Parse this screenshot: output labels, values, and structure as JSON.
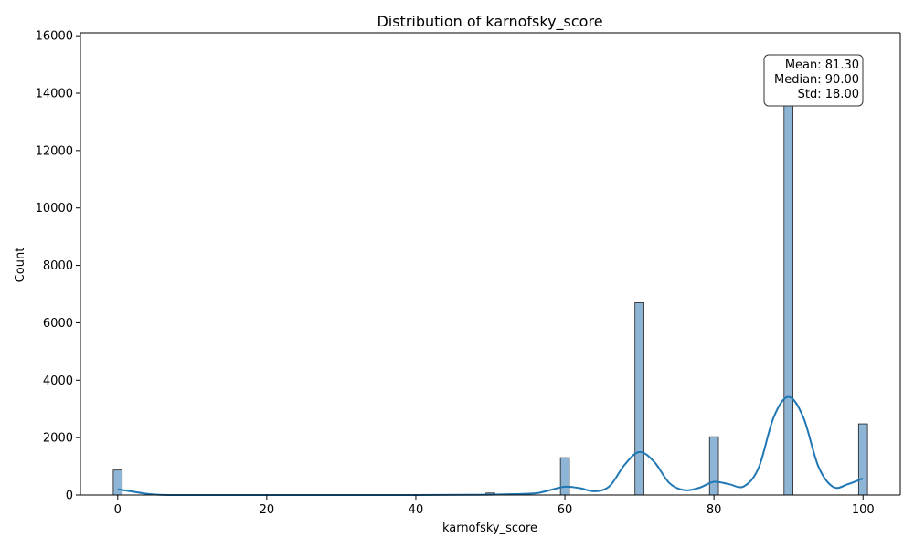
{
  "chart_data": {
    "type": "bar",
    "title": "Distribution of karnofsky_score",
    "xlabel": "karnofsky_score",
    "ylabel": "Count",
    "xlim": [
      -5,
      105
    ],
    "ylim": [
      0,
      16100
    ],
    "xticks": [
      0,
      20,
      40,
      60,
      80,
      100
    ],
    "yticks": [
      0,
      2000,
      4000,
      6000,
      8000,
      10000,
      12000,
      14000,
      16000
    ],
    "bin_width": 1.2,
    "bars": [
      {
        "x": 0,
        "value": 870
      },
      {
        "x": 50,
        "value": 70
      },
      {
        "x": 60,
        "value": 1300
      },
      {
        "x": 70,
        "value": 6700
      },
      {
        "x": 80,
        "value": 2030
      },
      {
        "x": 90,
        "value": 15200
      },
      {
        "x": 100,
        "value": 2480
      }
    ],
    "kde": {
      "x": [
        0,
        2,
        4,
        6,
        10,
        20,
        30,
        40,
        48,
        52,
        56,
        58,
        60,
        62,
        64,
        66,
        68,
        70,
        72,
        74,
        76,
        78,
        80,
        82,
        84,
        86,
        88,
        90,
        92,
        94,
        96,
        98,
        100
      ],
      "y": [
        200,
        120,
        40,
        5,
        0,
        0,
        0,
        0,
        8,
        25,
        60,
        170,
        290,
        240,
        130,
        310,
        1050,
        1500,
        1150,
        420,
        170,
        250,
        460,
        380,
        300,
        950,
        2700,
        3420,
        2700,
        1000,
        280,
        380,
        580
      ]
    },
    "annotation": {
      "lines": [
        "Mean: 81.30",
        "Median: 90.00",
        "Std: 18.00"
      ],
      "position": "top-right"
    },
    "grid": false,
    "legend": "none"
  }
}
